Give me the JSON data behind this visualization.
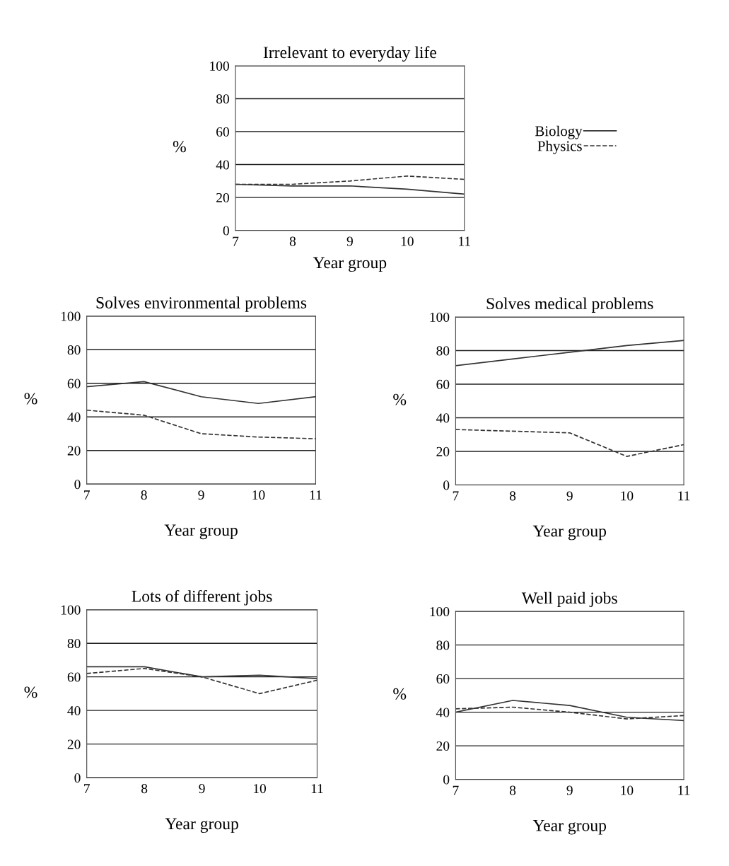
{
  "chart_data": [
    {
      "type": "line",
      "title": "Irrelevant to everyday life",
      "xlabel": "Year group",
      "ylabel": "%",
      "x": [
        7,
        8,
        9,
        10,
        11
      ],
      "xlim": [
        7,
        11
      ],
      "xticks": [
        7,
        8,
        9,
        10,
        11
      ],
      "ylim": [
        0,
        100
      ],
      "yticks": [
        0,
        20,
        40,
        60,
        80,
        100
      ],
      "grid": "y",
      "legend": "right",
      "series": [
        {
          "name": "Biology",
          "color": "#333333",
          "line_style": "solid",
          "values": [
            28,
            27,
            27,
            25,
            22
          ]
        },
        {
          "name": "Physics",
          "color": "#333333",
          "line_style": "dashed",
          "values": [
            28,
            28,
            30,
            33,
            31
          ]
        }
      ]
    },
    {
      "type": "line",
      "title": "Solves environmental problems",
      "xlabel": "Year group",
      "ylabel": "%",
      "x": [
        7,
        8,
        9,
        10,
        11
      ],
      "xlim": [
        7,
        11
      ],
      "xticks": [
        7,
        8,
        9,
        10,
        11
      ],
      "ylim": [
        0,
        100
      ],
      "yticks": [
        0,
        20,
        40,
        60,
        80,
        100
      ],
      "grid": "y",
      "series": [
        {
          "color": "#333333",
          "line_style": "solid",
          "values": [
            58,
            61,
            52,
            48,
            52
          ]
        },
        {
          "color": "#333333",
          "line_style": "dashed",
          "values": [
            44,
            41,
            30,
            28,
            27
          ]
        }
      ]
    },
    {
      "type": "line",
      "title": "Solves medical problems",
      "xlabel": "Year group",
      "ylabel": "%",
      "x": [
        7,
        8,
        9,
        10,
        11
      ],
      "xlim": [
        7,
        11
      ],
      "xticks": [
        7,
        8,
        9,
        10,
        11
      ],
      "ylim": [
        0,
        100
      ],
      "yticks": [
        0,
        20,
        40,
        60,
        80,
        100
      ],
      "grid": "y",
      "series": [
        {
          "color": "#333333",
          "line_style": "solid",
          "values": [
            71,
            75,
            79,
            83,
            86
          ]
        },
        {
          "color": "#333333",
          "line_style": "dashed",
          "values": [
            33,
            32,
            31,
            17,
            24
          ]
        }
      ]
    },
    {
      "type": "line",
      "title": "Lots of different jobs",
      "xlabel": "Year group",
      "ylabel": "%",
      "x": [
        7,
        8,
        9,
        10,
        11
      ],
      "xlim": [
        7,
        11
      ],
      "xticks": [
        7,
        8,
        9,
        10,
        11
      ],
      "ylim": [
        0,
        100
      ],
      "yticks": [
        0,
        20,
        40,
        60,
        80,
        100
      ],
      "grid": "y",
      "series": [
        {
          "color": "#333333",
          "line_style": "solid",
          "values": [
            66,
            66,
            60,
            61,
            59
          ]
        },
        {
          "color": "#333333",
          "line_style": "dashed",
          "values": [
            62,
            65,
            60,
            50,
            58
          ]
        }
      ]
    },
    {
      "type": "line",
      "title": "Well paid jobs",
      "xlabel": "Year group",
      "ylabel": "%",
      "x": [
        7,
        8,
        9,
        10,
        11
      ],
      "xlim": [
        7,
        11
      ],
      "xticks": [
        7,
        8,
        9,
        10,
        11
      ],
      "ylim": [
        0,
        100
      ],
      "yticks": [
        0,
        20,
        40,
        60,
        80,
        100
      ],
      "grid": "y",
      "series": [
        {
          "color": "#333333",
          "line_style": "solid",
          "values": [
            40,
            47,
            44,
            37,
            35
          ]
        },
        {
          "color": "#333333",
          "line_style": "dashed",
          "values": [
            42,
            43,
            40,
            36,
            38
          ]
        }
      ]
    }
  ]
}
